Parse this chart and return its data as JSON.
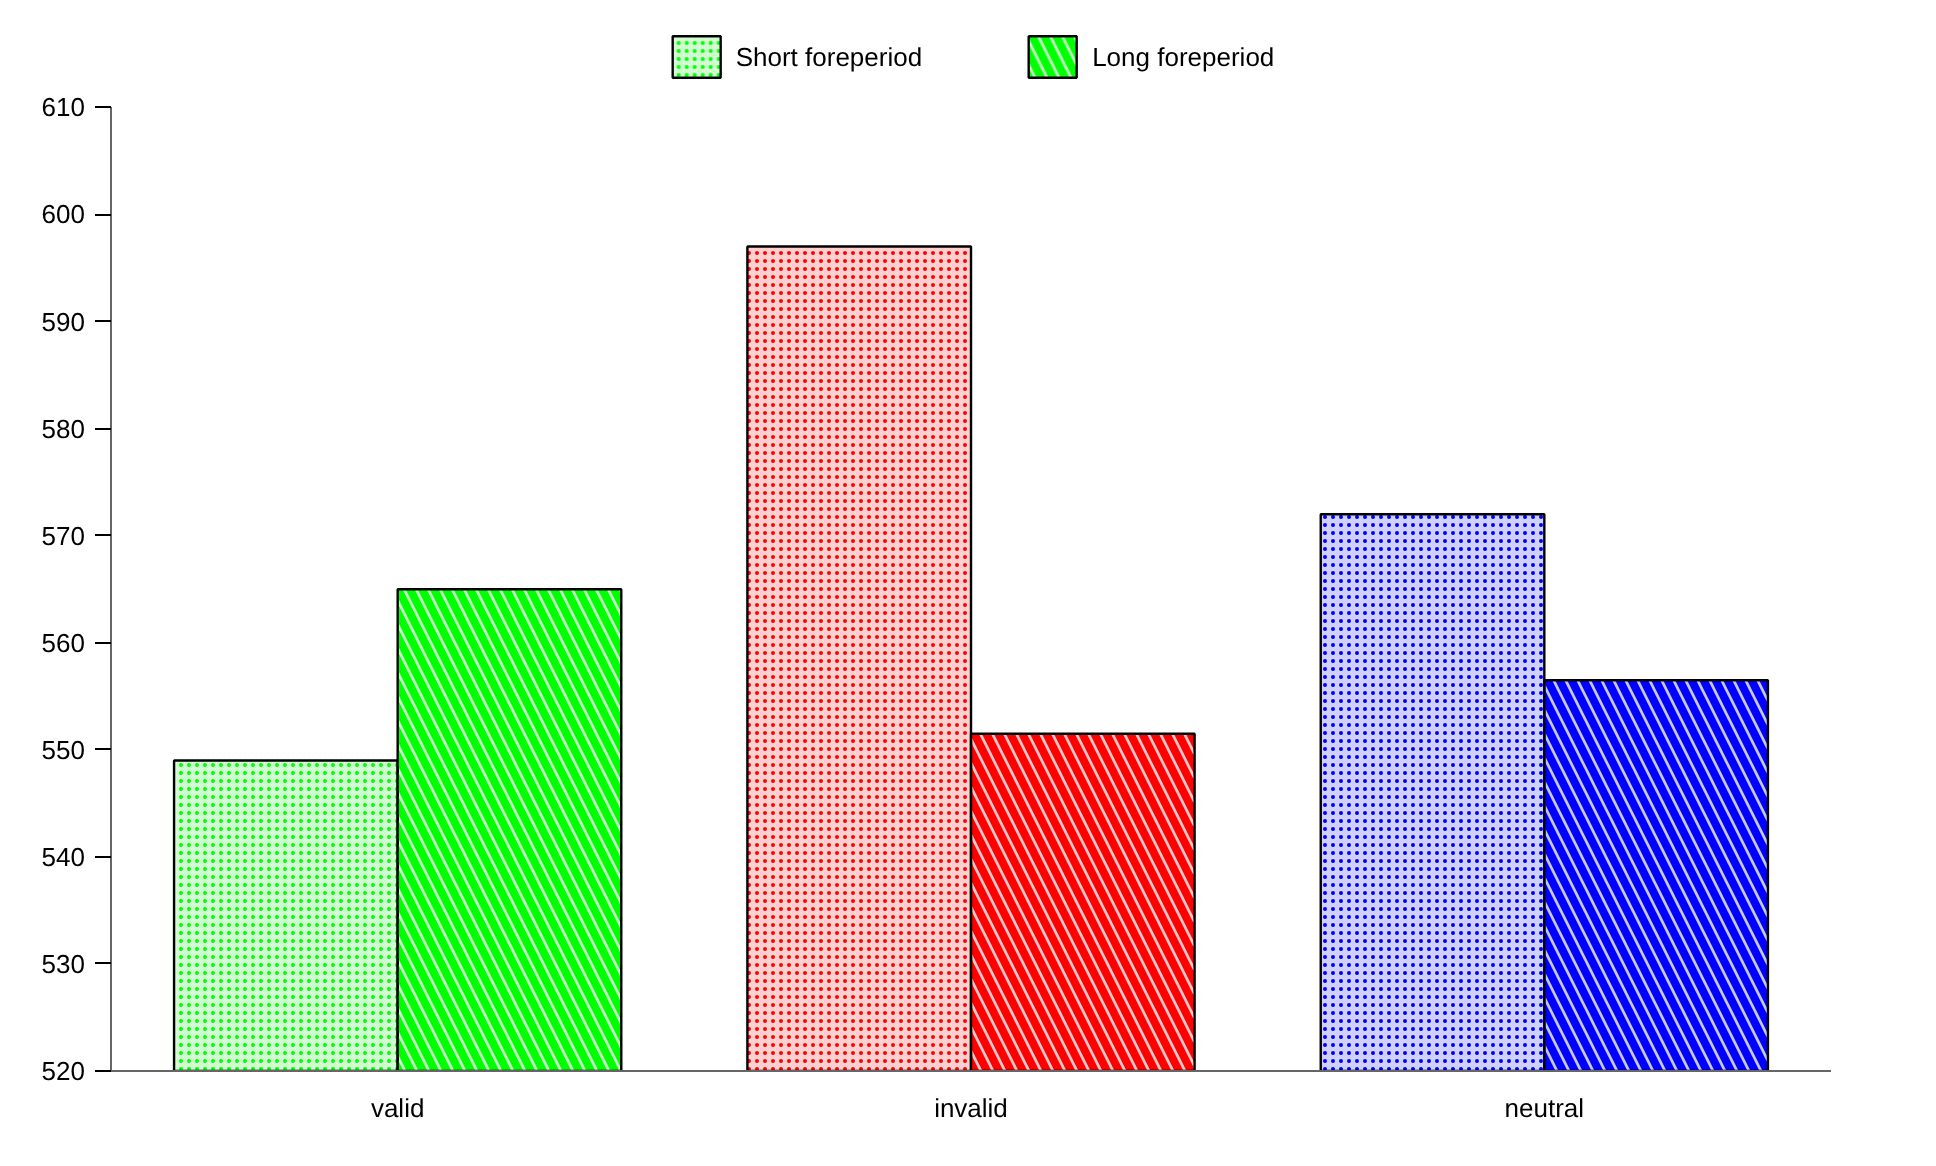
{
  "chart_data": {
    "type": "bar",
    "categories": [
      "valid",
      "invalid",
      "neutral"
    ],
    "series": [
      {
        "name": "Short foreperiod",
        "colors": [
          "#00ff00",
          "#ff0000",
          "#0000ff"
        ],
        "values": [
          549,
          597,
          572
        ]
      },
      {
        "name": "Long foreperiod",
        "colors": [
          "#00ff00",
          "#ff0000",
          "#0000ff"
        ],
        "values": [
          565,
          551.5,
          556.5
        ]
      }
    ],
    "ylim": [
      520,
      610
    ],
    "yticks": [
      520,
      530,
      540,
      550,
      560,
      570,
      580,
      590,
      600,
      610
    ],
    "grid": false,
    "legend": "top"
  }
}
